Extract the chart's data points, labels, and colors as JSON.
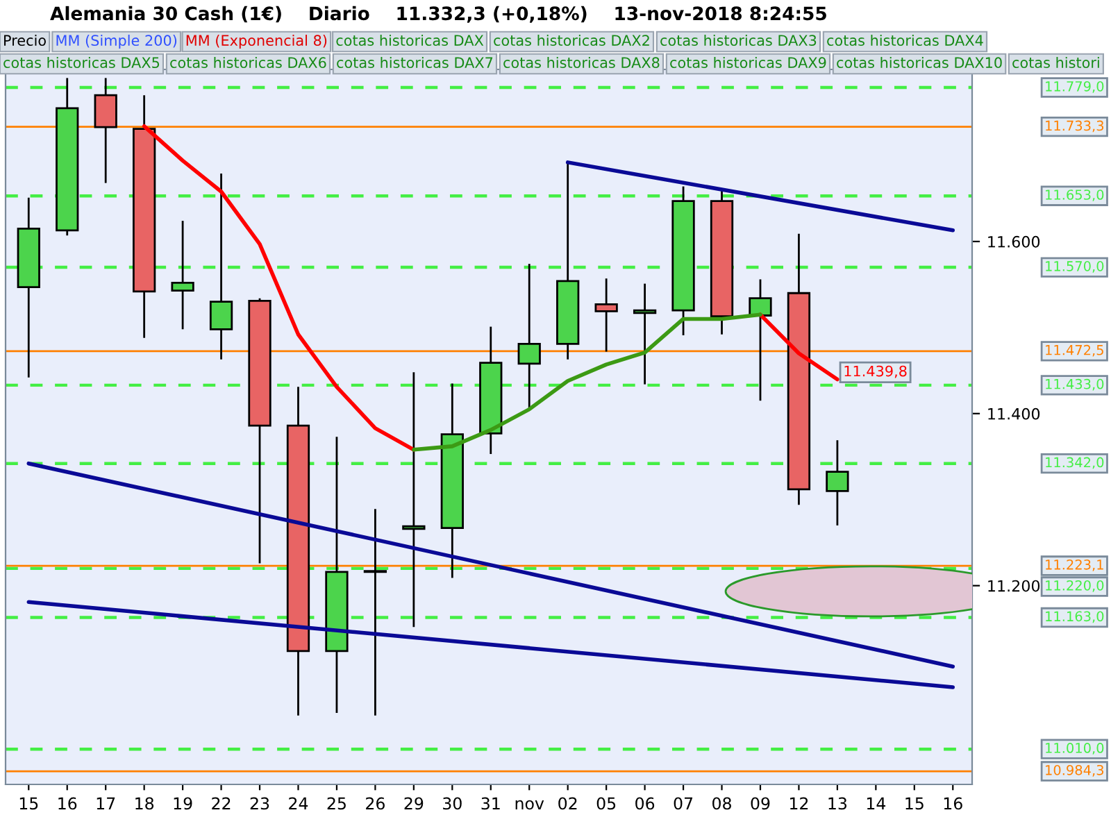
{
  "chart_data": {
    "type": "candlestick",
    "title": "Alemania 30 Cash (1€)    Diario    11.332,3 (+0,18%)    13-nov-2018 8:24:55",
    "categories": [
      "15",
      "16",
      "17",
      "18",
      "19",
      "22",
      "23",
      "24",
      "25",
      "26",
      "29",
      "30",
      "31",
      "nov",
      "02",
      "05",
      "06",
      "07",
      "08",
      "09",
      "12",
      "13",
      "14",
      "15",
      "16"
    ],
    "ohlc": [
      [
        11547,
        11651,
        11442,
        11615
      ],
      [
        11613,
        11790,
        11607,
        11755
      ],
      [
        11770,
        11790,
        11668,
        11733
      ],
      [
        11731,
        11770,
        11488,
        11542
      ],
      [
        11543,
        11624,
        11498,
        11552
      ],
      [
        11498,
        11679,
        11463,
        11530
      ],
      [
        11531,
        11534,
        11226,
        11386
      ],
      [
        11386,
        11431,
        11049,
        11124
      ],
      [
        11124,
        11373,
        11052,
        11216
      ],
      [
        11216,
        11289,
        11049,
        11217
      ],
      [
        11266,
        11448,
        11152,
        11269
      ],
      [
        11267,
        11435,
        11209,
        11376
      ],
      [
        11377,
        11501,
        11353,
        11459
      ],
      [
        11458,
        11574,
        11405,
        11481
      ],
      [
        11481,
        11692,
        11463,
        11554
      ],
      [
        11527,
        11557,
        11472,
        11519
      ],
      [
        11517,
        11551,
        11434,
        11520
      ],
      [
        11520,
        11664,
        11491,
        11647
      ],
      [
        11647,
        11662,
        11492,
        11513
      ],
      [
        11514,
        11556,
        11415,
        11534
      ],
      [
        11540,
        11609,
        11294,
        11312
      ],
      [
        11310,
        11369,
        11270,
        11332.3
      ],
      null,
      null,
      null
    ],
    "colors": [
      "#4cd44c",
      "#4cd44c",
      "#e86464",
      "#e86464",
      "#4cd44c",
      "#4cd44c",
      "#e86464",
      "#e86464",
      "#4cd44c",
      "#4cd44c",
      "#4cd44c",
      "#4cd44c",
      "#4cd44c",
      "#4cd44c",
      "#4cd44c",
      "#e86464",
      "#4cd44c",
      "#4cd44c",
      "#e86464",
      "#4cd44c",
      "#e86464",
      "#4cd44c",
      null,
      null,
      null
    ],
    "series": [
      {
        "type": "line",
        "color": "#ff0000",
        "values": [
          null,
          null,
          null,
          11734,
          11694,
          11658,
          11597,
          11492,
          11431,
          11383,
          11358,
          null,
          null,
          null,
          null,
          null,
          null,
          null,
          null,
          null,
          null,
          null,
          null,
          null,
          null
        ]
      },
      {
        "type": "line",
        "color": "#ff0000",
        "values": [
          null,
          null,
          null,
          null,
          null,
          null,
          null,
          null,
          null,
          null,
          null,
          null,
          null,
          null,
          null,
          null,
          null,
          null,
          null,
          11515,
          11470,
          11439.8,
          null,
          null,
          null
        ],
        "value_labels": [
          null,
          null,
          null,
          null,
          null,
          null,
          null,
          null,
          null,
          null,
          null,
          null,
          null,
          null,
          null,
          null,
          null,
          null,
          null,
          null,
          null,
          "11.439,8",
          null,
          null,
          null
        ]
      },
      {
        "type": "line",
        "color": "#3c9a14",
        "values": [
          null,
          null,
          null,
          null,
          null,
          null,
          null,
          null,
          null,
          null,
          11358,
          11362,
          11381,
          11405,
          11438,
          11457,
          11471,
          11510,
          11510,
          11515,
          null,
          null,
          null,
          null,
          null
        ]
      },
      {
        "type": "line",
        "color": "#0a0a96",
        "values": [
          null,
          null,
          null,
          null,
          null,
          null,
          null,
          null,
          null,
          null,
          null,
          null,
          null,
          null,
          11692,
          null,
          null,
          null,
          null,
          null,
          null,
          null,
          null,
          null,
          11613
        ]
      },
      {
        "type": "line",
        "color": "#0a0a96",
        "values": [
          11342,
          null,
          null,
          null,
          null,
          null,
          null,
          null,
          null,
          null,
          null,
          null,
          null,
          null,
          null,
          null,
          null,
          null,
          null,
          null,
          null,
          null,
          null,
          null,
          11106
        ]
      },
      {
        "type": "line",
        "color": "#0a0a96",
        "values": [
          11181,
          null,
          null,
          null,
          null,
          null,
          null,
          null,
          null,
          null,
          null,
          null,
          null,
          null,
          null,
          null,
          null,
          null,
          null,
          null,
          null,
          null,
          null,
          null,
          11082
        ]
      }
    ],
    "ref_lines": [
      {
        "axis": "y",
        "value": 11779,
        "label": "11.779,0",
        "color": "#44ee44",
        "line_style": "dashed"
      },
      {
        "axis": "y",
        "value": 11733.3,
        "label": "11.733,3",
        "color": "#ff8000",
        "line_style": "solid"
      },
      {
        "axis": "y",
        "value": 11653,
        "label": "11.653,0",
        "color": "#44ee44",
        "line_style": "dashed"
      },
      {
        "axis": "y",
        "value": 11570,
        "label": "11.570,0",
        "color": "#44ee44",
        "line_style": "dashed"
      },
      {
        "axis": "y",
        "value": 11472.5,
        "label": "11.472,5",
        "color": "#ff8000",
        "line_style": "solid"
      },
      {
        "axis": "y",
        "value": 11433,
        "label": "11.433,0",
        "color": "#44ee44",
        "line_style": "dashed"
      },
      {
        "axis": "y",
        "value": 11342,
        "label": "11.342,0",
        "color": "#44ee44",
        "line_style": "dashed"
      },
      {
        "axis": "y",
        "value": 11223.1,
        "label": "11.223,1",
        "color": "#ff8000",
        "line_style": "solid"
      },
      {
        "axis": "y",
        "value": 11220,
        "label": "11.220,0",
        "color": "#44ee44",
        "line_style": "dashed"
      },
      {
        "axis": "y",
        "value": 11163,
        "label": "11.163,0",
        "color": "#44ee44",
        "line_style": "dashed"
      },
      {
        "axis": "y",
        "value": 11010,
        "label": "11.010,0",
        "color": "#44ee44",
        "line_style": "dashed"
      },
      {
        "axis": "y",
        "value": 10984.3,
        "label": "10.984,3",
        "color": "#ff8000",
        "line_style": "solid"
      }
    ],
    "ylim": [
      10969,
      11800
    ],
    "yticks": [
      {
        "value": 11200,
        "label": "11.200"
      },
      {
        "value": 11400,
        "label": "11.400"
      },
      {
        "value": 11600,
        "label": "11.600"
      }
    ],
    "grid": false,
    "annotations": [
      "Precio",
      "MM (Simple 200)",
      "MM (Exponencial 8)",
      "cotas historicas DAX",
      "cotas historicas DAX2",
      "cotas historicas DAX3",
      "cotas historicas DAX4",
      "cotas historicas DAX5",
      "cotas historicas DAX6",
      "cotas historicas DAX7",
      "cotas historicas DAX8",
      "cotas historicas DAX9",
      "cotas historicas DAX10",
      "cotas histori"
    ]
  }
}
